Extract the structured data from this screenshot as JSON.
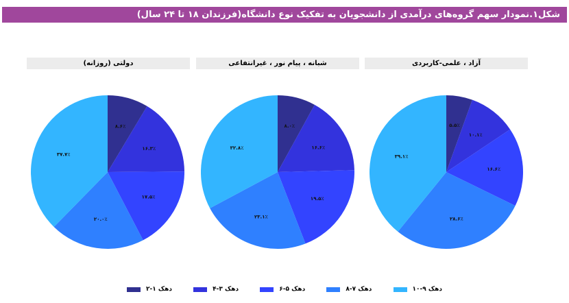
{
  "header": {
    "title": "شکل۱.نمودار سهم گروه‌های درآمدی از دانشجویان به تفکیک نوع دانشگاه(فرزندان ۱۸ تا ۲۴ سال)",
    "color": "#a0479c"
  },
  "colors": [
    "#303090",
    "#3333dd",
    "#3344ff",
    "#2f80ff",
    "#33b5ff"
  ],
  "legend": [
    {
      "label": "دهک ۱-۲",
      "color": "#303090"
    },
    {
      "label": "دهک ۳-۴",
      "color": "#3333dd"
    },
    {
      "label": "دهک ۵-۶",
      "color": "#3344ff"
    },
    {
      "label": "دهک ۷-۸",
      "color": "#2f80ff"
    },
    {
      "label": "دهک ۹-۱۰",
      "color": "#33b5ff"
    }
  ],
  "chart_data": [
    {
      "type": "pie",
      "title": "دولتی (روزانه)",
      "categories": [
        "دهک ۱-۲",
        "دهک ۳-۴",
        "دهک ۵-۶",
        "دهک ۷-۸",
        "دهک ۹-۱۰"
      ],
      "values": [
        8.6,
        16.3,
        17.5,
        20.0,
        37.7
      ],
      "labels": [
        "۸.۶٪",
        "۱۶.۳٪",
        "۱۷.۵٪",
        "۲۰.۰٪",
        "۳۷.۷٪"
      ],
      "start_angle": "12 o'clock, clockwise",
      "legend_position": "bottom"
    },
    {
      "type": "pie",
      "title": "شبانه ، پیام نور ، غیرانتفاعی",
      "categories": [
        "دهک ۱-۲",
        "دهک ۳-۴",
        "دهک ۵-۶",
        "دهک ۷-۸",
        "دهک ۹-۱۰"
      ],
      "values": [
        8.0,
        16.6,
        19.5,
        23.1,
        32.8
      ],
      "labels": [
        "۸.۰٪",
        "۱۶.۶٪",
        "۱۹.۵٪",
        "۲۳.۱٪",
        "۳۲.۸٪"
      ],
      "start_angle": "12 o'clock, clockwise",
      "legend_position": "bottom"
    },
    {
      "type": "pie",
      "title": "آزاد ، علمی-کاربردی",
      "categories": [
        "دهک ۱-۲",
        "دهک ۳-۴",
        "دهک ۵-۶",
        "دهک ۷-۸",
        "دهک ۹-۱۰"
      ],
      "values": [
        5.5,
        10.1,
        16.6,
        28.6,
        39.1
      ],
      "labels": [
        "۵.۵٪",
        "۱۰.۱٪",
        "۱۶.۶٪",
        "۲۸.۶٪",
        "۳۹.۱٪"
      ],
      "start_angle": "12 o'clock, clockwise",
      "legend_position": "bottom"
    }
  ],
  "panels": [
    {
      "title": "دولتی (روزانه)"
    },
    {
      "title": "شبانه ، پیام نور ، غیرانتفاعی"
    },
    {
      "title": "آزاد ، علمی-کاربردی"
    }
  ]
}
